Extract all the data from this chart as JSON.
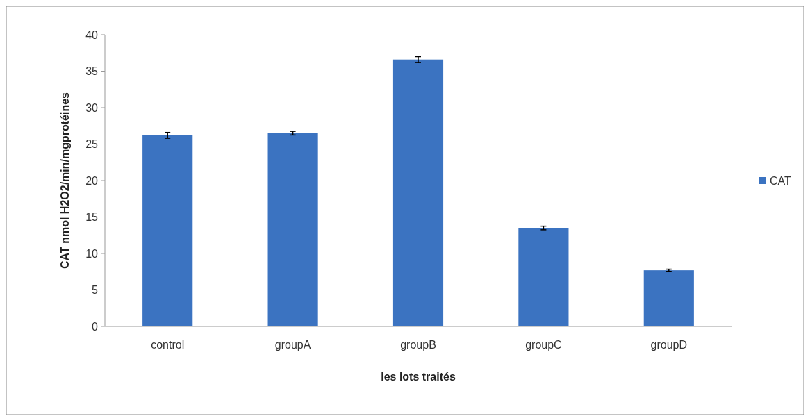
{
  "chart_data": {
    "type": "bar",
    "xlabel": "les lots traités",
    "ylabel": "CAT nmol H2O2/min/mgprotéines",
    "categories": [
      "control",
      "groupA",
      "groupB",
      "groupC",
      "groupD"
    ],
    "series": [
      {
        "name": "CAT",
        "color": "#3b73c1",
        "values": [
          26.2,
          26.5,
          36.6,
          13.5,
          7.7
        ],
        "errors": [
          0.4,
          0.25,
          0.4,
          0.25,
          0.15
        ]
      }
    ],
    "ylim": [
      0,
      40
    ],
    "yticks": [
      0,
      5,
      10,
      15,
      20,
      25,
      30,
      35,
      40
    ],
    "grid": false,
    "legend": "right"
  }
}
